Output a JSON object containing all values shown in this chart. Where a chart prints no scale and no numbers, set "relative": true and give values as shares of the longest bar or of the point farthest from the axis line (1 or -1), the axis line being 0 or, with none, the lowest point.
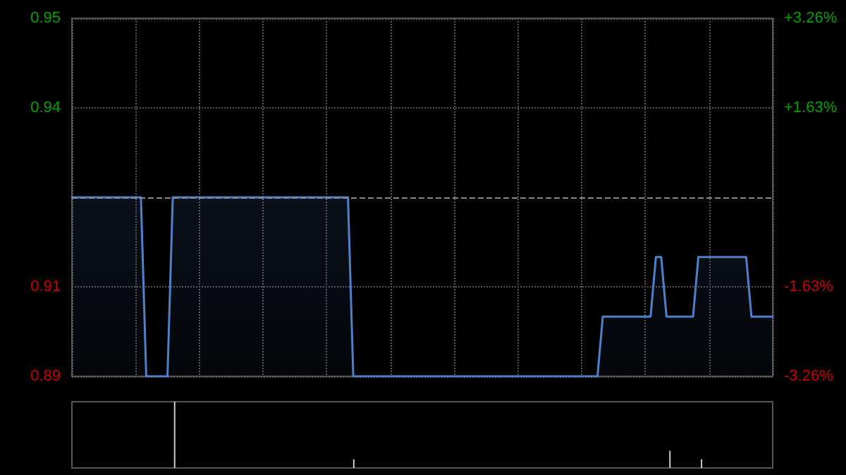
{
  "chart_data": [
    {
      "type": "area",
      "categories": [
        null,
        null,
        null,
        null,
        null,
        null,
        null,
        null,
        null,
        null,
        null,
        null,
        null,
        null,
        null,
        null,
        null,
        null,
        null,
        null,
        null,
        null,
        null,
        null,
        null,
        null,
        null,
        null,
        null,
        null,
        null,
        null,
        null,
        null,
        null,
        null,
        null,
        null,
        null,
        null,
        null,
        null,
        null,
        null,
        null,
        null,
        null,
        null,
        null,
        null,
        null,
        null,
        null,
        null,
        null,
        null,
        null,
        null,
        null,
        null,
        null,
        null,
        null,
        null,
        null,
        null,
        null,
        null,
        null,
        null,
        null,
        null,
        null,
        null,
        null,
        null,
        null,
        null,
        null,
        null,
        null,
        null,
        null,
        null,
        null,
        null,
        null,
        null,
        null,
        null,
        null,
        null,
        null,
        null,
        null,
        null,
        null,
        null,
        null,
        null,
        null,
        null,
        null,
        null,
        null,
        null,
        null,
        null,
        null,
        null,
        null,
        null,
        null,
        null,
        null,
        null,
        null,
        null,
        null,
        null,
        null,
        null,
        null,
        null,
        null,
        null,
        null,
        null,
        null,
        null,
        null,
        null,
        null
      ],
      "series": [
        {
          "color": "#4f80cc",
          "values": [
            0.92,
            0.92,
            0.92,
            0.92,
            0.92,
            0.92,
            0.92,
            0.92,
            0.92,
            0.92,
            0.92,
            0.92,
            0.92,
            0.92,
            0.89,
            0.89,
            0.89,
            0.89,
            0.89,
            0.92,
            0.92,
            0.92,
            0.92,
            0.92,
            0.92,
            0.92,
            0.92,
            0.92,
            0.92,
            0.92,
            0.92,
            0.92,
            0.92,
            0.92,
            0.92,
            0.92,
            0.92,
            0.92,
            0.92,
            0.92,
            0.92,
            0.92,
            0.92,
            0.92,
            0.92,
            0.92,
            0.92,
            0.92,
            0.92,
            0.92,
            0.92,
            0.92,
            0.92,
            0.89,
            0.89,
            0.89,
            0.89,
            0.89,
            0.89,
            0.89,
            0.89,
            0.89,
            0.89,
            0.89,
            0.89,
            0.89,
            0.89,
            0.89,
            0.89,
            0.89,
            0.89,
            0.89,
            0.89,
            0.89,
            0.89,
            0.89,
            0.89,
            0.89,
            0.89,
            0.89,
            0.89,
            0.89,
            0.89,
            0.89,
            0.89,
            0.89,
            0.89,
            0.89,
            0.89,
            0.89,
            0.89,
            0.89,
            0.89,
            0.89,
            0.89,
            0.89,
            0.89,
            0.89,
            0.89,
            0.89,
            0.9,
            0.9,
            0.9,
            0.9,
            0.9,
            0.9,
            0.9,
            0.9,
            0.9,
            0.9,
            0.91,
            0.91,
            0.9,
            0.9,
            0.9,
            0.9,
            0.9,
            0.9,
            0.91,
            0.91,
            0.91,
            0.91,
            0.91,
            0.91,
            0.91,
            0.91,
            0.91,
            0.91,
            0.9,
            0.9,
            0.9,
            0.9,
            0.9
          ]
        }
      ],
      "ylim": [
        0.89,
        0.95
      ],
      "yticks": [
        0.89,
        {
          "value": 0.905,
          "label": "0.91"
        },
        {
          "value": 0.935,
          "label": "0.94"
        },
        0.95
      ],
      "y2lim": [
        -3.26,
        3.26
      ],
      "y2ticks": [
        {
          "value": -3.26,
          "label": "-3.26%"
        },
        {
          "value": -1.63,
          "label": "-1.63%"
        },
        {
          "value": 1.63,
          "label": "+1.63%"
        },
        {
          "value": 3.26,
          "label": "+3.26%"
        }
      ],
      "ref_lines": [
        {
          "axis": "y",
          "value": 0.92,
          "color": "#888888",
          "line_style": "dashed"
        }
      ],
      "grid": true,
      "tick_labels": "y"
    },
    {
      "type": "bar",
      "relative": true,
      "categories": [
        null,
        null,
        null,
        null,
        null,
        null,
        null,
        null,
        null,
        null,
        null,
        null,
        null,
        null,
        null,
        null,
        null,
        null,
        null,
        null,
        null,
        null,
        null,
        null,
        null,
        null,
        null,
        null,
        null,
        null,
        null,
        null,
        null,
        null,
        null,
        null,
        null,
        null,
        null,
        null,
        null,
        null,
        null,
        null,
        null,
        null,
        null,
        null,
        null,
        null,
        null,
        null,
        null,
        null,
        null,
        null,
        null,
        null,
        null,
        null,
        null,
        null,
        null,
        null,
        null,
        null,
        null,
        null,
        null,
        null,
        null,
        null,
        null,
        null,
        null,
        null,
        null,
        null,
        null,
        null,
        null,
        null,
        null,
        null,
        null,
        null,
        null,
        null,
        null,
        null,
        null,
        null,
        null,
        null,
        null,
        null,
        null,
        null,
        null,
        null,
        null,
        null,
        null,
        null,
        null,
        null,
        null,
        null,
        null,
        null,
        null,
        null,
        null,
        null,
        null,
        null,
        null,
        null,
        null,
        null,
        null,
        null,
        null,
        null,
        null,
        null,
        null,
        null,
        null,
        null,
        null,
        null,
        null
      ],
      "series": [
        {
          "color": "#cccccc",
          "values": [
            null,
            null,
            null,
            null,
            null,
            null,
            null,
            null,
            null,
            null,
            null,
            null,
            null,
            null,
            null,
            null,
            null,
            null,
            null,
            1,
            null,
            null,
            null,
            null,
            null,
            null,
            null,
            null,
            null,
            null,
            null,
            null,
            null,
            null,
            null,
            null,
            null,
            null,
            null,
            null,
            null,
            null,
            null,
            null,
            null,
            null,
            null,
            null,
            null,
            null,
            null,
            null,
            null,
            0.13,
            null,
            null,
            null,
            null,
            null,
            null,
            null,
            null,
            null,
            null,
            null,
            null,
            null,
            null,
            null,
            null,
            null,
            null,
            null,
            null,
            null,
            null,
            null,
            null,
            null,
            null,
            null,
            null,
            null,
            null,
            null,
            null,
            null,
            null,
            null,
            null,
            null,
            null,
            null,
            null,
            null,
            null,
            null,
            null,
            null,
            null,
            null,
            null,
            null,
            null,
            null,
            null,
            null,
            null,
            null,
            null,
            null,
            null,
            null,
            0.26,
            null,
            null,
            null,
            null,
            null,
            0.13,
            null,
            null,
            null,
            null,
            null,
            null,
            null,
            null,
            null,
            null,
            null,
            null,
            null
          ]
        }
      ],
      "tick_labels": false
    }
  ]
}
